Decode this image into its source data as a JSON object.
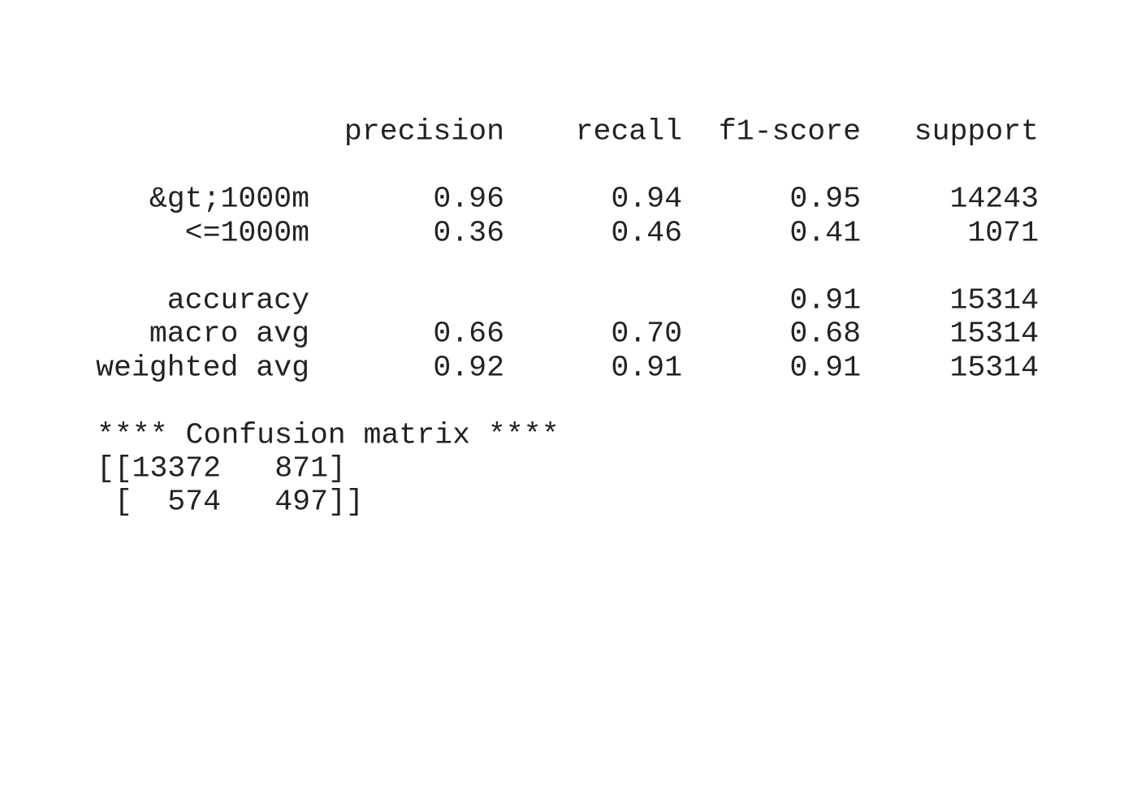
{
  "report": {
    "headers": [
      "precision",
      "recall",
      "f1-score",
      "support"
    ],
    "rows": [
      [
        "&gt;1000m",
        "0.96",
        "0.94",
        "0.95",
        "14243"
      ],
      [
        "<=1000m",
        "0.36",
        "0.46",
        "0.41",
        "1071"
      ]
    ],
    "accuracy": {
      "label": "accuracy",
      "f1": "0.91",
      "support": "15314"
    },
    "averages": [
      [
        "macro avg",
        "0.66",
        "0.70",
        "0.68",
        "15314"
      ],
      [
        "weighted avg",
        "0.92",
        "0.91",
        "0.91",
        "15314"
      ]
    ]
  },
  "confusion": {
    "title": "**** Confusion matrix ****",
    "matrix": [
      [
        "13372",
        "871"
      ],
      [
        "574",
        "497"
      ]
    ]
  }
}
